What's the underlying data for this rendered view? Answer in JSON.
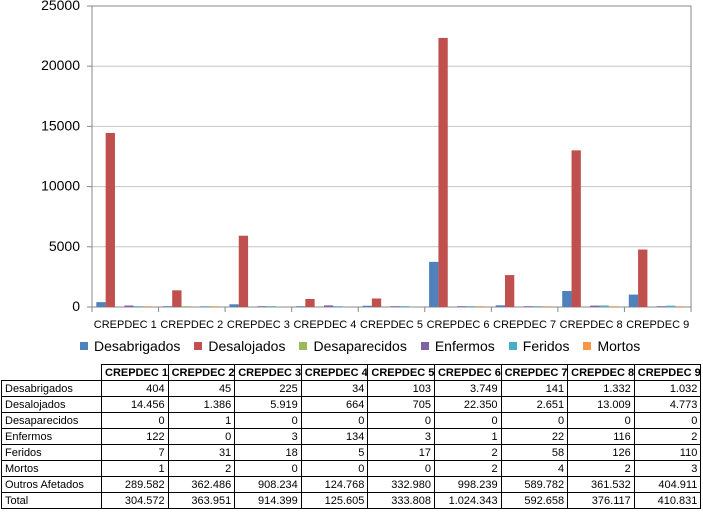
{
  "chart_data": {
    "type": "bar",
    "categories": [
      "CREPDEC 1",
      "CREPDEC 2",
      "CREPDEC 3",
      "CREPDEC 4",
      "CREPDEC 5",
      "CREPDEC 6",
      "CREPDEC 7",
      "CREPDEC 8",
      "CREPDEC 9"
    ],
    "y_ticks": [
      "0",
      "5000",
      "10000",
      "15000",
      "20000",
      "25000"
    ],
    "ylim": [
      0,
      25000
    ],
    "grid": true,
    "legend_position": "bottom",
    "series": [
      {
        "name": "Desabrigados",
        "color": "#4f81bd",
        "values": [
          404,
          45,
          225,
          34,
          103,
          3749,
          141,
          1332,
          1032
        ]
      },
      {
        "name": "Desalojados",
        "color": "#c0504d",
        "values": [
          14456,
          1386,
          5919,
          664,
          705,
          22350,
          2651,
          13009,
          4773
        ]
      },
      {
        "name": "Desaparecidos",
        "color": "#9bbb59",
        "values": [
          0,
          1,
          0,
          0,
          0,
          0,
          0,
          0,
          0
        ]
      },
      {
        "name": "Enfermos",
        "color": "#8064a2",
        "values": [
          122,
          0,
          3,
          134,
          3,
          1,
          22,
          116,
          2
        ]
      },
      {
        "name": "Feridos",
        "color": "#4bacc6",
        "values": [
          7,
          31,
          18,
          5,
          17,
          2,
          58,
          126,
          110
        ]
      },
      {
        "name": "Mortos",
        "color": "#f79646",
        "values": [
          1,
          2,
          0,
          0,
          0,
          2,
          4,
          2,
          3
        ]
      }
    ]
  },
  "table": {
    "headers": [
      "CREPDEC 1",
      "CREPDEC 2",
      "CREPDEC 3",
      "CREPDEC 4",
      "CREPDEC 5",
      "CREPDEC 6",
      "CREPDEC 7",
      "CREPDEC 8",
      "CREPDEC 9"
    ],
    "rows": [
      {
        "label": "Desabrigados",
        "cells": [
          "404",
          "45",
          "225",
          "34",
          "103",
          "3.749",
          "141",
          "1.332",
          "1.032"
        ]
      },
      {
        "label": "Desalojados",
        "cells": [
          "14.456",
          "1.386",
          "5.919",
          "664",
          "705",
          "22.350",
          "2.651",
          "13.009",
          "4.773"
        ]
      },
      {
        "label": "Desaparecidos",
        "cells": [
          "0",
          "1",
          "0",
          "0",
          "0",
          "0",
          "0",
          "0",
          "0"
        ]
      },
      {
        "label": "Enfermos",
        "cells": [
          "122",
          "0",
          "3",
          "134",
          "3",
          "1",
          "22",
          "116",
          "2"
        ]
      },
      {
        "label": "Feridos",
        "cells": [
          "7",
          "31",
          "18",
          "5",
          "17",
          "2",
          "58",
          "126",
          "110"
        ]
      },
      {
        "label": "Mortos",
        "cells": [
          "1",
          "2",
          "0",
          "0",
          "0",
          "2",
          "4",
          "2",
          "3"
        ]
      },
      {
        "label": "Outros Afetados",
        "cells": [
          "289.582",
          "362.486",
          "908.234",
          "124.768",
          "332.980",
          "998.239",
          "589.782",
          "361.532",
          "404.911"
        ]
      },
      {
        "label": "Total",
        "cells": [
          "304.572",
          "363.951",
          "914.399",
          "125.605",
          "333.808",
          "1.024.343",
          "592.658",
          "376.117",
          "410.831"
        ]
      }
    ]
  }
}
